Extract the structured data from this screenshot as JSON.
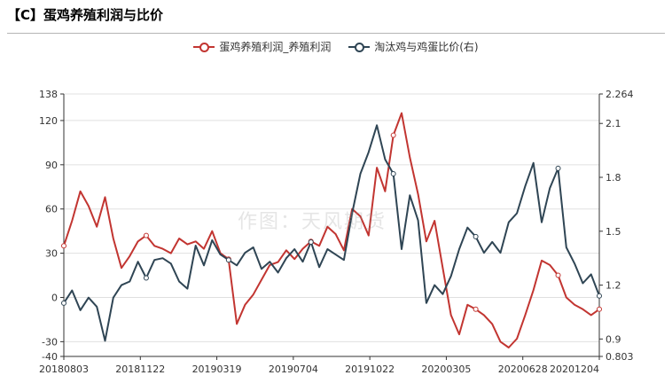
{
  "header": {
    "title": "【C】蛋鸡养殖利润与比价"
  },
  "watermark": "作图：天风期货",
  "colors": {
    "series1": "#c23531",
    "series2": "#2f4554",
    "grid": "#e0e0e0",
    "axis": "#333333"
  },
  "chart_data": {
    "type": "line",
    "x_ticks": [
      "20180803",
      "20181122",
      "20190319",
      "20190704",
      "20191022",
      "20200305",
      "20200628",
      "20201204"
    ],
    "y_left": {
      "range": [
        -40,
        138
      ],
      "ticks": [
        -40,
        -30,
        0,
        30,
        60,
        90,
        120,
        138
      ]
    },
    "y_right": {
      "range": [
        0.803,
        2.264
      ],
      "ticks": [
        0.803,
        0.9,
        1.2,
        1.5,
        1.8,
        2.1,
        2.264
      ]
    },
    "grid": true,
    "legend_position": "top-center",
    "series": [
      {
        "name": "蛋鸡养殖利润_养殖利润",
        "axis": "left",
        "values": [
          35,
          52,
          72,
          62,
          48,
          68,
          40,
          20,
          28,
          38,
          42,
          35,
          33,
          30,
          40,
          36,
          38,
          33,
          45,
          30,
          26,
          -18,
          -5,
          2,
          12,
          22,
          24,
          32,
          26,
          33,
          38,
          35,
          48,
          43,
          32,
          60,
          55,
          42,
          88,
          72,
          110,
          125,
          95,
          70,
          38,
          52,
          20,
          -12,
          -25,
          -5,
          -8,
          -12,
          -18,
          -30,
          -34,
          -28,
          -12,
          5,
          25,
          22,
          15,
          0,
          -5,
          -8,
          -12,
          -8
        ]
      },
      {
        "name": "淘汰鸡与鸡蛋比价(右)",
        "axis": "right",
        "values": [
          1.1,
          1.17,
          1.06,
          1.13,
          1.08,
          0.89,
          1.13,
          1.2,
          1.22,
          1.33,
          1.24,
          1.34,
          1.35,
          1.32,
          1.22,
          1.18,
          1.42,
          1.31,
          1.45,
          1.37,
          1.34,
          1.31,
          1.38,
          1.41,
          1.29,
          1.33,
          1.27,
          1.35,
          1.4,
          1.33,
          1.44,
          1.3,
          1.4,
          1.37,
          1.34,
          1.6,
          1.82,
          1.94,
          2.09,
          1.9,
          1.82,
          1.4,
          1.7,
          1.56,
          1.1,
          1.2,
          1.15,
          1.25,
          1.4,
          1.52,
          1.47,
          1.38,
          1.44,
          1.38,
          1.55,
          1.6,
          1.75,
          1.88,
          1.55,
          1.74,
          1.85,
          1.41,
          1.32,
          1.21,
          1.26,
          1.14
        ]
      }
    ]
  }
}
